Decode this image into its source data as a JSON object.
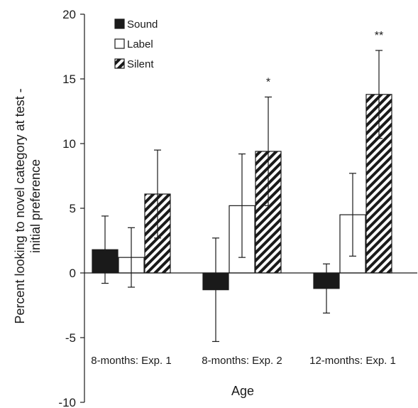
{
  "chart_data": {
    "type": "bar",
    "title": "",
    "xlabel": "Age",
    "ylabel": "Percent looking to novel category at test - initial preference",
    "ylabel_lines": [
      "Percent looking to novel category at test -",
      "initial preference"
    ],
    "ylim": [
      -10,
      20
    ],
    "yticks": [
      -10,
      -5,
      0,
      5,
      10,
      15,
      20
    ],
    "ytick_labels": [
      "-10",
      "-5",
      "0",
      "5",
      "10",
      "15",
      "20"
    ],
    "categories": [
      "8-months: Exp. 1",
      "8-months: Exp. 2",
      "12-months: Exp. 1"
    ],
    "series": [
      {
        "name": "Sound",
        "style": "solid",
        "color": "#1a1a1a",
        "values": [
          1.8,
          -1.3,
          -1.2
        ],
        "error": [
          2.6,
          4.0,
          1.9
        ]
      },
      {
        "name": "Label",
        "style": "open",
        "color": "#ffffff",
        "values": [
          1.2,
          5.2,
          4.5
        ],
        "error": [
          2.3,
          4.0,
          3.2
        ]
      },
      {
        "name": "Silent",
        "style": "hatched",
        "color": "#1a1a1a",
        "values": [
          6.1,
          9.4,
          13.8
        ],
        "error": [
          3.4,
          4.2,
          3.4
        ]
      }
    ],
    "annotations": [
      {
        "category": 1,
        "series": 2,
        "text": "*"
      },
      {
        "category": 2,
        "series": 2,
        "text": "**"
      }
    ],
    "grid": false,
    "legend_position": "top-left"
  }
}
